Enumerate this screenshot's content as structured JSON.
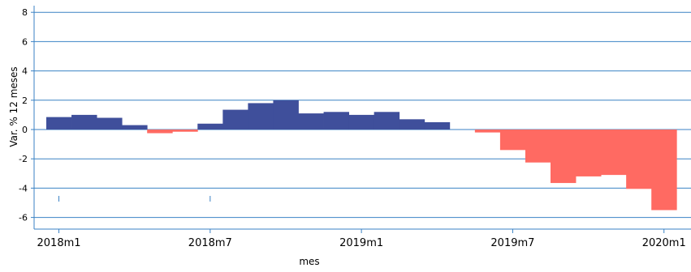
{
  "chart_data": {
    "type": "bar",
    "xlabel": "mes",
    "ylabel": "Var. % 12 meses",
    "ylim": [
      -6.7,
      8.5
    ],
    "yticks": [
      8,
      6,
      4,
      2,
      0,
      -2,
      -4,
      -6
    ],
    "ytick_labels": [
      "8",
      "6",
      "4",
      "2",
      "0",
      "-2",
      "-4",
      "-6"
    ],
    "xticks": [
      "2018m1",
      "2018m7",
      "2019m1",
      "2019m7",
      "2020m1"
    ],
    "grid": true,
    "legend": "none",
    "colors": {
      "positive": "#3f4f9b",
      "negative": "#ff6a62",
      "grid": "#3a82c4",
      "axis": "#3a82c4"
    },
    "categories": [
      "2018m1",
      "2018m2",
      "2018m3",
      "2018m4",
      "2018m5",
      "2018m6",
      "2018m7",
      "2018m8",
      "2018m9",
      "2018m10",
      "2018m11",
      "2018m12",
      "2019m1",
      "2019m2",
      "2019m3",
      "2019m4",
      "2019m5",
      "2019m6",
      "2019m7",
      "2019m8",
      "2019m9",
      "2019m10",
      "2019m11",
      "2019m12",
      "2020m1"
    ],
    "values": [
      0.85,
      1.0,
      0.8,
      0.3,
      -0.25,
      -0.15,
      0.4,
      1.35,
      1.8,
      2.0,
      1.1,
      1.2,
      1.0,
      1.2,
      0.7,
      0.5,
      0.0,
      -0.2,
      -1.4,
      -2.25,
      -3.65,
      -3.2,
      -3.1,
      -4.05,
      -5.5
    ]
  }
}
